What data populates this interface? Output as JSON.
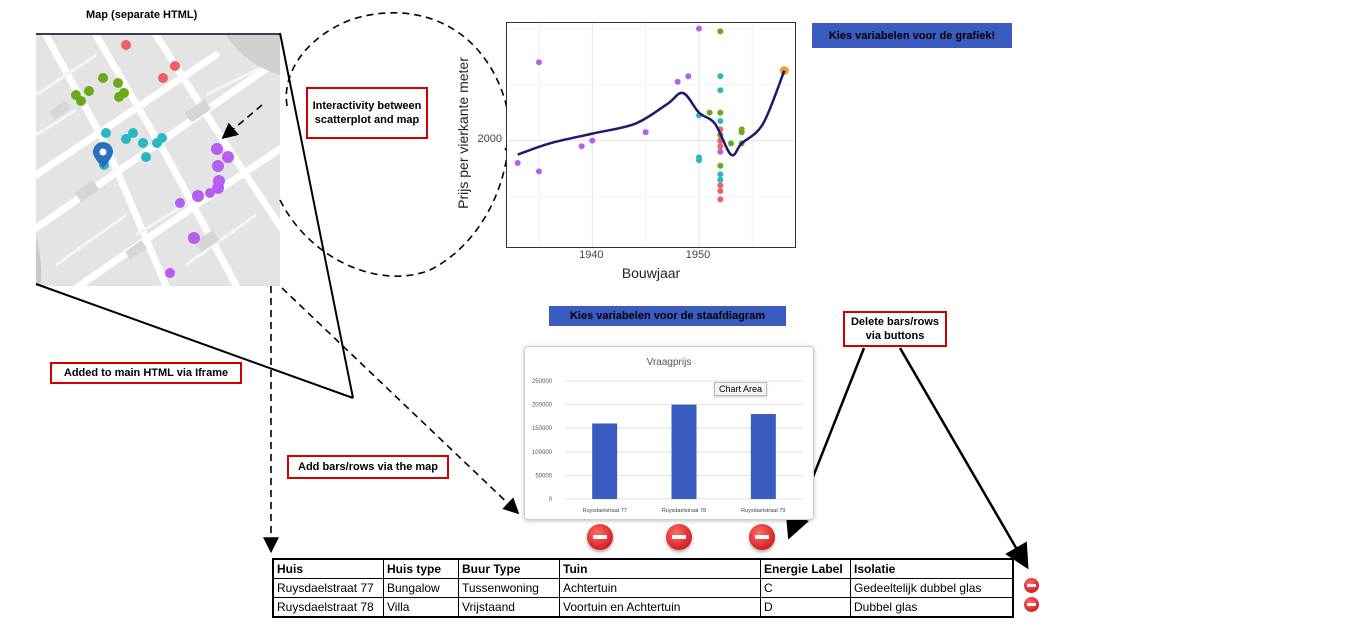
{
  "map": {
    "title": "Map (separate HTML)"
  },
  "notes": {
    "interactivity": "Interactivity between scatterplot and map",
    "iframe": "Added to main HTML via Iframe",
    "add_bars": "Add bars/rows via the map",
    "delete_bars": "Delete bars/rows via buttons"
  },
  "scatter_button": "Kies variabelen voor de grafiek!",
  "bar_button": "Kies variabelen voor de staafdiagram",
  "bar_tooltip": "Chart Area",
  "chart_data": [
    {
      "type": "scatter",
      "title": "",
      "xlabel": "Bouwjaar",
      "ylabel": "Prijs per vierkante meter",
      "xticks": [
        1940,
        1950
      ],
      "yticks": [
        2000
      ],
      "xlim": [
        1932,
        1959
      ],
      "ylim": [
        1620,
        2420
      ],
      "grid": true,
      "series": [
        {
          "color": "#b45ff0",
          "points": [
            [
              1935,
              2280
            ],
            [
              1933,
              1920
            ],
            [
              1935,
              1890
            ],
            [
              1939,
              1980
            ],
            [
              1940,
              2000
            ],
            [
              1945,
              2030
            ],
            [
              1948,
              2210
            ],
            [
              1949,
              2230
            ],
            [
              1950,
              2400
            ],
            [
              1952,
              2000
            ],
            [
              1952,
              1960
            ]
          ]
        },
        {
          "color": "#2ab8c0",
          "points": [
            [
              1950,
              2090
            ],
            [
              1950,
              1930
            ],
            [
              1950,
              1940
            ],
            [
              1952,
              2230
            ],
            [
              1952,
              2180
            ],
            [
              1952,
              2070
            ],
            [
              1952,
              1880
            ],
            [
              1952,
              1860
            ]
          ]
        },
        {
          "color": "#6aaa1a",
          "points": [
            [
              1952,
              2390
            ],
            [
              1951,
              2100
            ],
            [
              1952,
              2100
            ],
            [
              1954,
              2040
            ],
            [
              1954,
              2030
            ],
            [
              1952,
              2020
            ],
            [
              1954,
              1990
            ],
            [
              1953,
              1990
            ],
            [
              1952,
              1910
            ]
          ]
        },
        {
          "color": "#f06060",
          "points": [
            [
              1952,
              2040
            ],
            [
              1952,
              2000
            ],
            [
              1952,
              1980
            ],
            [
              1952,
              1840
            ],
            [
              1952,
              1820
            ],
            [
              1952,
              1790
            ]
          ]
        },
        {
          "color": "#f0a030",
          "points": [
            [
              1958,
              2250
            ]
          ]
        }
      ],
      "trend": [
        [
          1933,
          1950
        ],
        [
          1936,
          1990
        ],
        [
          1940,
          2025
        ],
        [
          1944,
          2060
        ],
        [
          1947,
          2130
        ],
        [
          1948.5,
          2170
        ],
        [
          1950,
          2100
        ],
        [
          1951.5,
          2060
        ],
        [
          1953,
          1950
        ],
        [
          1954,
          1990
        ],
        [
          1956,
          2060
        ],
        [
          1958,
          2250
        ]
      ]
    },
    {
      "type": "bar",
      "title": "Vraagprijs",
      "categories": [
        "Ruysdaelstraat 77",
        "Ruysdaelstraat 78",
        "Ruysdaelstraat 79"
      ],
      "values": [
        160000,
        200000,
        180000
      ],
      "yticks": [
        0,
        50000,
        100000,
        150000,
        200000,
        250000
      ],
      "ylim": [
        0,
        250000
      ],
      "color": "#3a5bbf"
    }
  ],
  "table": {
    "headers": [
      "Huis",
      "Huis type",
      "Buur Type",
      "Tuin",
      "Energie Label",
      "Isolatie"
    ],
    "rows": [
      [
        "Ruysdaelstraat 77",
        "Bungalow",
        "Tussenwoning",
        "Achtertuin",
        "C",
        "Gedeeltelijk dubbel glas"
      ],
      [
        "Ruysdaelstraat 78",
        "Villa",
        "Vrijstaand",
        "Voortuin en Achtertuin",
        "D",
        "Dubbel glas"
      ]
    ]
  }
}
